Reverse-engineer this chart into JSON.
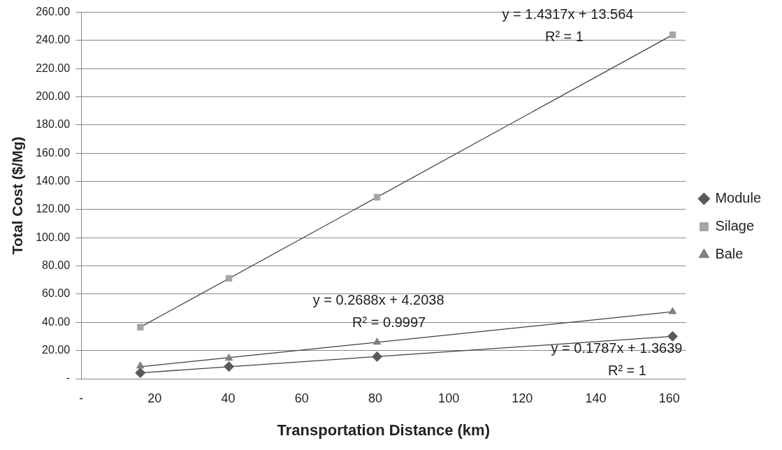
{
  "chart_data": {
    "type": "scatter",
    "xlabel": "Transportation Distance (km)",
    "ylabel": "Total Cost ($/Mg)",
    "xlim": [
      0,
      164.5
    ],
    "xticks": [
      {
        "value": 0,
        "label": "-"
      },
      20,
      40,
      60,
      80,
      100,
      120,
      140,
      160
    ],
    "ylim": [
      0,
      260
    ],
    "yticks": [
      {
        "value": 0,
        "label": "-"
      },
      {
        "value": 20,
        "label": "20.00"
      },
      {
        "value": 40,
        "label": "40.00"
      },
      {
        "value": 60,
        "label": "60.00"
      },
      {
        "value": 80,
        "label": "80.00"
      },
      {
        "value": 100,
        "label": "100.00"
      },
      {
        "value": 120,
        "label": "120.00"
      },
      {
        "value": 140,
        "label": "140.00"
      },
      {
        "value": 160,
        "label": "160.00"
      },
      {
        "value": 180,
        "label": "180.00"
      },
      {
        "value": 200,
        "label": "200.00"
      },
      {
        "value": 220,
        "label": "220.00"
      },
      {
        "value": 240,
        "label": "240.00"
      },
      {
        "value": 260,
        "label": "260.00"
      }
    ],
    "grid": "y",
    "legend": "right",
    "series": [
      {
        "name": "Module",
        "color": "#595959",
        "marker": "diamond",
        "x": [
          16.1,
          40.2,
          80.5,
          160.9
        ],
        "values": [
          4.2,
          8.6,
          15.7,
          30.1
        ]
      },
      {
        "name": "Silage",
        "color": "#a6a6a6",
        "marker": "square",
        "x": [
          16.1,
          40.2,
          80.5,
          160.9
        ],
        "values": [
          36.6,
          71.2,
          128.8,
          244.0
        ]
      },
      {
        "name": "Bale",
        "color": "#7f7f7f",
        "marker": "triangle",
        "x": [
          16.1,
          40.2,
          80.5,
          160.9
        ],
        "values": [
          9.0,
          14.5,
          25.9,
          47.6
        ]
      },
      {
        "type": "line",
        "color": "#404040",
        "marker": "none",
        "x": [
          16.1,
          160.9
        ],
        "values": [
          4.2,
          30.1
        ]
      },
      {
        "type": "line",
        "color": "#404040",
        "marker": "none",
        "x": [
          16.1,
          160.9
        ],
        "values": [
          36.6,
          244.0
        ]
      },
      {
        "type": "line",
        "color": "#404040",
        "marker": "none",
        "x": [
          16.1,
          160.9
        ],
        "values": [
          8.5,
          47.5
        ]
      }
    ],
    "annotations": [
      "y = 1.4317x + 13.564",
      "R² = 1",
      "y = 0.2688x + 4.2038",
      "R² = 0.9997",
      "y = 0.1787x + 1.3639",
      "R² = 1"
    ]
  }
}
